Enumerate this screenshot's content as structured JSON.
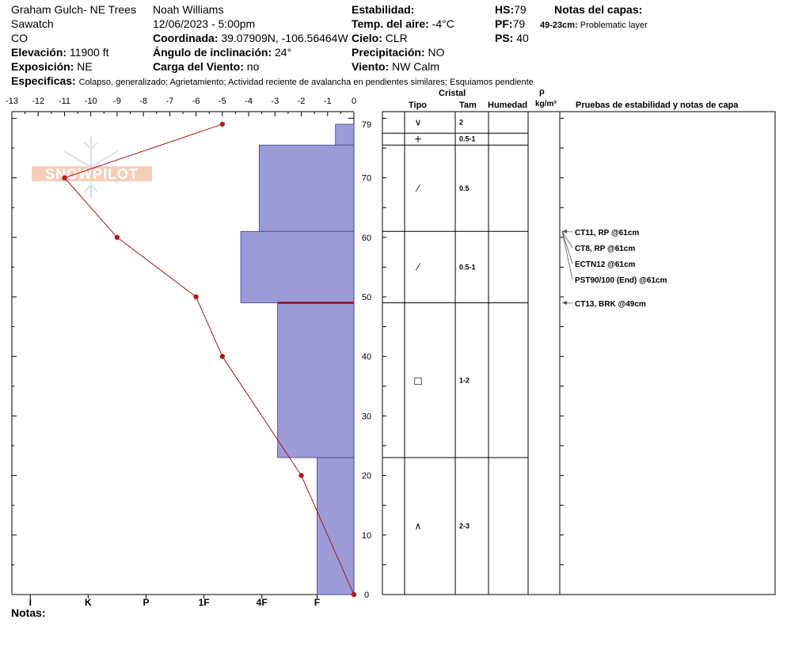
{
  "header": {
    "location": "Graham Gulch- NE Trees",
    "range": "Sawatch",
    "state": "CO",
    "observer": "Noah Williams",
    "datetime": "12/06/2023 - 5:00pm",
    "elevation_label": "Elevación:",
    "elevation_value": "11900 ft",
    "aspect_label": "Exposición:",
    "aspect_value": "NE",
    "coord_label": "Coordinada:",
    "coord_value": "39.07909N, -106.56464W",
    "slope_label": "Ángulo de inclinación:",
    "slope_value": "24°",
    "wind_load_label": "Carga del Viento:",
    "wind_load_value": "no",
    "stability_label": "Estabilidad:",
    "air_temp_label": "Temp. del aire:",
    "air_temp_value": "-4°C",
    "sky_label": "Cielo:",
    "sky_value": "CLR",
    "precip_label": "Precipitación:",
    "precip_value": "NO",
    "wind_label": "Viento:",
    "wind_value": "NW Calm",
    "hs_label": "HS:",
    "hs_value": "79",
    "pf_label": "PF:",
    "pf_value": "79",
    "ps_label": "PS:",
    "ps_value": "40",
    "layer_notes_label": "Notas del capas:",
    "layer_note_range": "49-23cm:",
    "layer_note_text": "Problematic layer",
    "specifics_label": "Especificas:",
    "specifics_value": "Colapso, generalizado; Agrietamiento; Actividad reciente de avalancha en pendientes similares; Esquiamos pendiente",
    "notes_label": "Notas:"
  },
  "table_headers": {
    "crystal": "Cristal",
    "type": "Tipo",
    "size": "Tam",
    "humidity": "Humedad",
    "rho": "ρ",
    "density_unit": "kg/m³",
    "tests": "Pruebas de estabilidad y notas de capa"
  },
  "logo_text": "SNOWPILOT",
  "chart_data": {
    "type": "snow-profile",
    "temp_axis": {
      "ticks": [
        -13,
        -12,
        -11,
        -10,
        -9,
        -8,
        -7,
        -6,
        -5,
        -4,
        -3,
        -2,
        -1,
        0
      ],
      "range": [
        -13,
        0
      ]
    },
    "depth_axis": {
      "range": [
        0,
        80
      ],
      "labels": [
        0,
        10,
        20,
        30,
        40,
        50,
        60,
        70,
        79
      ]
    },
    "hardness_axis": {
      "labels": [
        "I",
        "K",
        "P",
        "1F",
        "4F",
        "F"
      ],
      "scale": [
        -12.3,
        -10.1,
        -7.9,
        -5.7,
        -3.5,
        -1.4
      ]
    },
    "temperature_profile": [
      {
        "depth": 79,
        "temp": -5
      },
      {
        "depth": 70,
        "temp": -11
      },
      {
        "depth": 60,
        "temp": -9
      },
      {
        "depth": 50,
        "temp": -6
      },
      {
        "depth": 40,
        "temp": -5
      },
      {
        "depth": 20,
        "temp": -2
      },
      {
        "depth": 0,
        "temp": 0
      }
    ],
    "hardness_layers": [
      {
        "top": 79,
        "bottom": 75.5,
        "hardness": -0.7
      },
      {
        "top": 75.5,
        "bottom": 61,
        "hardness": -3.6
      },
      {
        "top": 61,
        "bottom": 49,
        "hardness": -4.3
      },
      {
        "top": 49,
        "bottom": 23,
        "hardness": -2.9
      },
      {
        "top": 23,
        "bottom": 0,
        "hardness": -1.4
      }
    ],
    "problem_layer_depth": 49,
    "layers": [
      {
        "top": 79,
        "bottom": 77.5,
        "grain": "∨",
        "size": "2"
      },
      {
        "top": 77.5,
        "bottom": 75.5,
        "grain": "+",
        "size": "0.5-1"
      },
      {
        "top": 75.5,
        "bottom": 61,
        "grain": "⁄",
        "size": "0.5"
      },
      {
        "top": 61,
        "bottom": 49,
        "grain": "⁄",
        "size": "0.5-1"
      },
      {
        "top": 49,
        "bottom": 23,
        "grain": "□",
        "size": "1-2"
      },
      {
        "top": 23,
        "bottom": 0,
        "grain": "∧",
        "size": "2-3"
      }
    ],
    "tests": [
      {
        "depth": 61,
        "label": "CT11, RP @61cm"
      },
      {
        "depth": 61,
        "label": "CT8, RP @61cm"
      },
      {
        "depth": 61,
        "label": "ECTN12 @61cm"
      },
      {
        "depth": 61,
        "label": "PST90/100 (End) @61cm"
      },
      {
        "depth": 49,
        "label": "CT13, BRK @49cm"
      }
    ]
  }
}
